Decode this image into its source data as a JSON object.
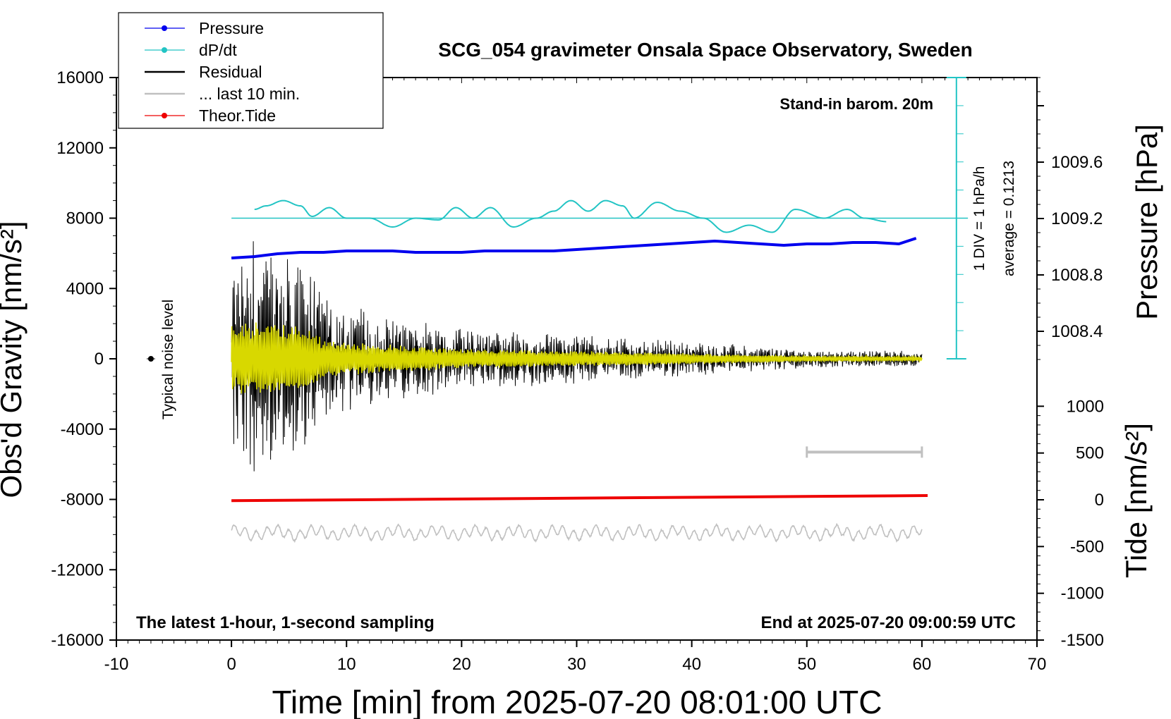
{
  "chart_data": {
    "type": "line",
    "title": "SCG_054 gravimeter Onsala Space Observatory, Sweden",
    "xlabel": "Time [min] from 2025-07-20 08:01:00 UTC",
    "ylabel_left": "Obs'd Gravity [nm/s²]",
    "ylabel_right_top": "Pressure [hPa]",
    "ylabel_right_bottom": "Tide [nm/s²]",
    "xlim": [
      -10,
      70
    ],
    "ylim_left": [
      -16000,
      16000
    ],
    "x_ticks": [
      "-10",
      "0",
      "10",
      "20",
      "30",
      "40",
      "50",
      "60",
      "70"
    ],
    "y_ticks_left": [
      "16000",
      "12000",
      "8000",
      "4000",
      "0",
      "-4000",
      "-8000",
      "-12000",
      "-16000"
    ],
    "pressure_axis": {
      "ticks": [
        "1009.6",
        "1009.2",
        "1008.8",
        "1008.4"
      ],
      "ylim": [
        1008.2,
        1010.2
      ]
    },
    "tide_axis": {
      "ticks": [
        "1000",
        "500",
        "0",
        "-500",
        "-1000",
        "-1500"
      ],
      "ylim": [
        -1500,
        1500
      ]
    },
    "annotations": {
      "barometer": "Stand-in barom. 20m",
      "div_label": "1 DIV = 1 hPa/h",
      "average": "average = 0.1213",
      "noise": "Typical noise level",
      "sampling": "The latest 1-hour, 1-second sampling",
      "end_time": "End at 2025-07-20 09:00:59 UTC"
    },
    "legend": {
      "position": "top-left",
      "entries": [
        "Pressure",
        "dP/dt",
        "Residual",
        "... last 10 min.",
        "Theor.Tide"
      ]
    },
    "colors": {
      "pressure": "#0000ee",
      "dpdt": "#22c4c4",
      "residual": "#000000",
      "yellow": "#d8d800",
      "last10": "#c0c0c0",
      "tide": "#ee0000",
      "axis": "#000000"
    },
    "series": [
      {
        "name": "Pressure",
        "unit": "hPa",
        "x": [
          0,
          2,
          4,
          6,
          8,
          10,
          12,
          14,
          16,
          18,
          20,
          22,
          24,
          26,
          28,
          30,
          32,
          34,
          36,
          38,
          40,
          42,
          44,
          46,
          48,
          50,
          52,
          54,
          56,
          58,
          59.5
        ],
        "values": [
          1008.92,
          1008.93,
          1008.95,
          1008.96,
          1008.96,
          1008.97,
          1008.97,
          1008.97,
          1008.96,
          1008.96,
          1008.96,
          1008.97,
          1008.97,
          1008.97,
          1008.97,
          1008.98,
          1008.99,
          1009.0,
          1009.01,
          1009.02,
          1009.03,
          1009.04,
          1009.03,
          1009.02,
          1009.01,
          1009.02,
          1009.02,
          1009.03,
          1009.03,
          1009.02,
          1009.06
        ]
      },
      {
        "name": "dP/dt",
        "unit": "nm/s² axis position",
        "x": [
          2,
          3,
          4.5,
          6,
          7,
          8.5,
          10,
          12,
          14,
          16,
          18,
          19.5,
          21,
          22.5,
          24.5,
          26.5,
          28,
          29.5,
          31,
          32.5,
          34,
          35,
          37,
          39,
          41,
          43,
          45,
          47,
          49,
          51.5,
          53.5,
          55,
          57
        ],
        "values": [
          8500,
          8700,
          9000,
          8700,
          8100,
          8600,
          8000,
          8000,
          7500,
          8000,
          7900,
          8600,
          8000,
          8600,
          7500,
          8000,
          8400,
          9000,
          8400,
          9000,
          8700,
          8000,
          8900,
          8400,
          8000,
          7200,
          7600,
          7200,
          8500,
          8000,
          8500,
          8000,
          7800
        ]
      },
      {
        "name": "Residual",
        "unit": "nm/s²",
        "envelope_x": [
          0,
          2,
          4,
          6,
          8,
          10,
          15,
          20,
          30,
          40,
          50,
          60
        ],
        "envelope_amplitude": [
          5500,
          6500,
          6200,
          5500,
          3500,
          2800,
          2200,
          1600,
          1300,
          900,
          500,
          400
        ]
      },
      {
        "name": "... last 10 min.",
        "unit": "nm/s²",
        "x_start": 0,
        "x_end": 60,
        "center": -9900,
        "amplitude": 500
      },
      {
        "name": "Theor.Tide",
        "unit": "nm/s² (tide axis)",
        "x": [
          0,
          60.5
        ],
        "values": [
          -10,
          45
        ]
      }
    ],
    "noise_level": {
      "x": -7,
      "y": 0
    },
    "last10_bar": {
      "x": [
        50,
        60
      ],
      "tide_value": 510
    },
    "dpdt_baseline": 8000,
    "dpdt_scale_x": 63
  }
}
